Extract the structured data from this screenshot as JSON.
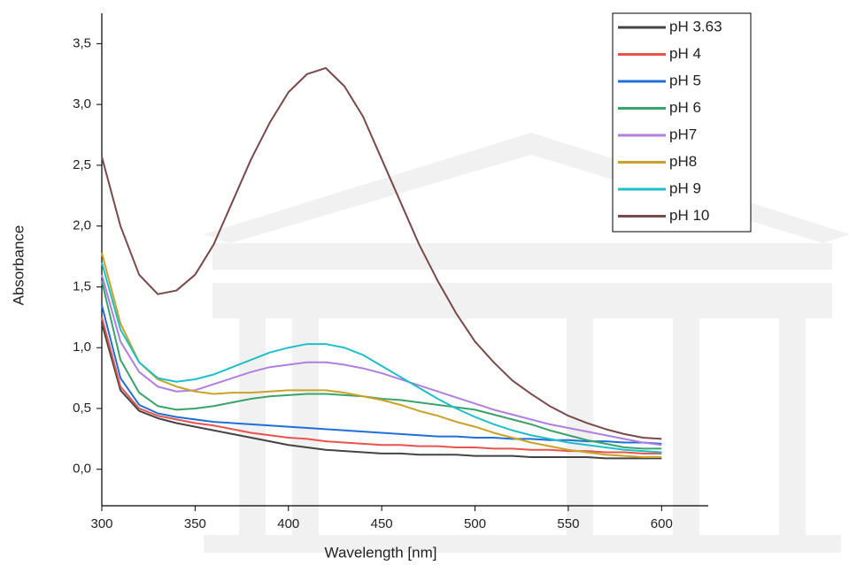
{
  "chart_data": {
    "type": "line",
    "x_label": "Wavelength [nm]",
    "y_label": "Absorbance",
    "x": [
      300,
      310,
      320,
      330,
      340,
      350,
      360,
      370,
      380,
      390,
      400,
      410,
      420,
      430,
      440,
      450,
      460,
      470,
      480,
      490,
      500,
      510,
      520,
      530,
      540,
      550,
      560,
      570,
      580,
      590,
      600
    ],
    "xlim": [
      300,
      625
    ],
    "xticks": [
      300,
      350,
      400,
      450,
      500,
      550,
      600
    ],
    "ylim": [
      -0.3,
      3.75
    ],
    "yticks": [
      {
        "value": 0,
        "label": "0,0"
      },
      {
        "value": 0.5,
        "label": "0,5"
      },
      {
        "value": 1,
        "label": "1,0"
      },
      {
        "value": 1.5,
        "label": "1,5"
      },
      {
        "value": 2,
        "label": "2,0"
      },
      {
        "value": 2.5,
        "label": "2,5"
      },
      {
        "value": 3,
        "label": "3,0"
      },
      {
        "value": 3.5,
        "label": "3,5"
      }
    ],
    "legend": "upper right",
    "series": [
      {
        "name": "pH 3.63",
        "color": "#444444",
        "values": [
          1.2,
          0.65,
          0.48,
          0.42,
          0.38,
          0.35,
          0.32,
          0.29,
          0.26,
          0.23,
          0.2,
          0.18,
          0.16,
          0.15,
          0.14,
          0.13,
          0.13,
          0.12,
          0.12,
          0.12,
          0.11,
          0.11,
          0.11,
          0.1,
          0.1,
          0.1,
          0.1,
          0.09,
          0.09,
          0.09,
          0.09
        ]
      },
      {
        "name": "pH 4",
        "color": "#e8534f",
        "values": [
          1.25,
          0.68,
          0.5,
          0.44,
          0.41,
          0.38,
          0.36,
          0.33,
          0.3,
          0.28,
          0.26,
          0.25,
          0.23,
          0.22,
          0.21,
          0.2,
          0.2,
          0.19,
          0.19,
          0.18,
          0.18,
          0.17,
          0.17,
          0.16,
          0.16,
          0.15,
          0.15,
          0.14,
          0.14,
          0.13,
          0.13
        ]
      },
      {
        "name": "pH 5",
        "color": "#1f6fd8",
        "values": [
          1.35,
          0.75,
          0.53,
          0.46,
          0.43,
          0.41,
          0.39,
          0.38,
          0.37,
          0.36,
          0.35,
          0.34,
          0.33,
          0.32,
          0.31,
          0.3,
          0.29,
          0.28,
          0.27,
          0.27,
          0.26,
          0.26,
          0.25,
          0.25,
          0.24,
          0.24,
          0.23,
          0.23,
          0.22,
          0.22,
          0.21
        ]
      },
      {
        "name": "pH 6",
        "color": "#3aa36b",
        "values": [
          1.55,
          0.9,
          0.63,
          0.52,
          0.49,
          0.5,
          0.52,
          0.55,
          0.58,
          0.6,
          0.61,
          0.62,
          0.62,
          0.61,
          0.6,
          0.58,
          0.57,
          0.55,
          0.53,
          0.51,
          0.49,
          0.45,
          0.41,
          0.37,
          0.32,
          0.28,
          0.24,
          0.21,
          0.18,
          0.17,
          0.17
        ]
      },
      {
        "name": "pH7",
        "color": "#b07fe0",
        "values": [
          1.6,
          1.05,
          0.8,
          0.68,
          0.64,
          0.65,
          0.7,
          0.75,
          0.8,
          0.84,
          0.86,
          0.88,
          0.88,
          0.86,
          0.83,
          0.79,
          0.74,
          0.69,
          0.64,
          0.59,
          0.54,
          0.49,
          0.45,
          0.41,
          0.37,
          0.34,
          0.31,
          0.28,
          0.25,
          0.22,
          0.2
        ]
      },
      {
        "name": "pH8",
        "color": "#c9a227",
        "values": [
          1.78,
          1.2,
          0.88,
          0.74,
          0.68,
          0.64,
          0.62,
          0.63,
          0.63,
          0.64,
          0.65,
          0.65,
          0.65,
          0.63,
          0.6,
          0.57,
          0.53,
          0.48,
          0.44,
          0.39,
          0.35,
          0.3,
          0.26,
          0.22,
          0.19,
          0.16,
          0.14,
          0.12,
          0.11,
          0.1,
          0.1
        ]
      },
      {
        "name": "pH 9",
        "color": "#1fbfc9",
        "values": [
          1.7,
          1.15,
          0.88,
          0.75,
          0.72,
          0.74,
          0.78,
          0.84,
          0.9,
          0.96,
          1.0,
          1.03,
          1.03,
          1.0,
          0.94,
          0.85,
          0.76,
          0.67,
          0.58,
          0.5,
          0.43,
          0.37,
          0.32,
          0.28,
          0.25,
          0.22,
          0.2,
          0.18,
          0.16,
          0.15,
          0.14
        ]
      },
      {
        "name": "pH 10",
        "color": "#7a4a4a",
        "values": [
          2.57,
          2.0,
          1.6,
          1.44,
          1.47,
          1.6,
          1.85,
          2.2,
          2.55,
          2.85,
          3.1,
          3.25,
          3.3,
          3.15,
          2.9,
          2.55,
          2.2,
          1.85,
          1.55,
          1.28,
          1.05,
          0.88,
          0.73,
          0.62,
          0.52,
          0.44,
          0.38,
          0.33,
          0.29,
          0.26,
          0.25
        ]
      }
    ]
  }
}
